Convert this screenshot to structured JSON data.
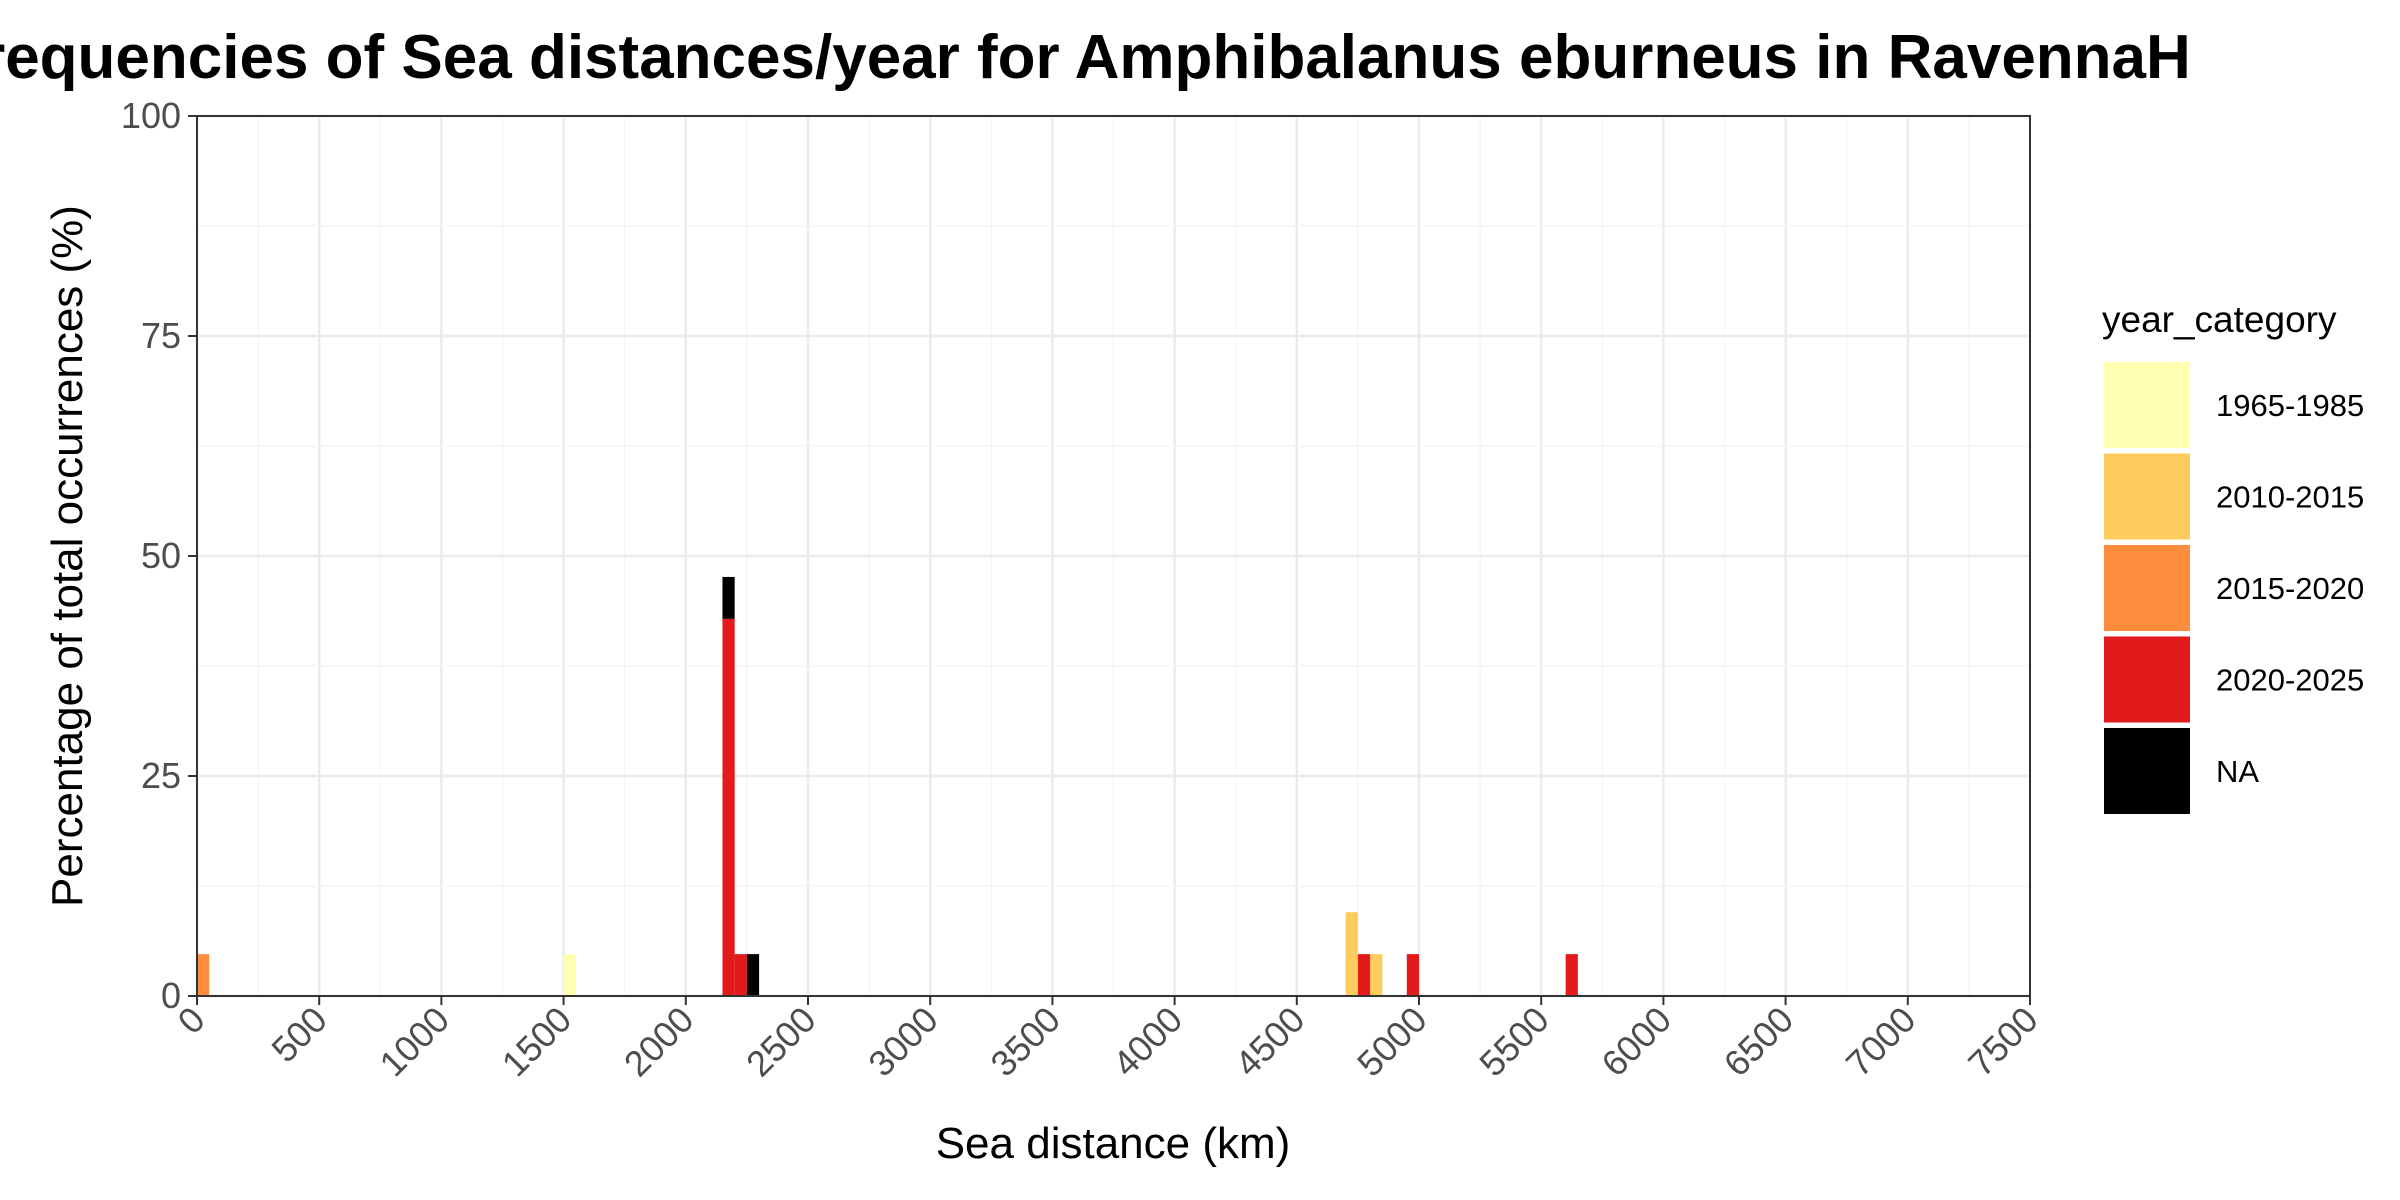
{
  "chart_data": {
    "type": "bar",
    "title": "Frequencies of Sea distances/year for Amphibalanus eburneus in RavennaH",
    "xlabel": "Sea distance (km)",
    "ylabel": "Percentage of total occurrences (%)",
    "xlim": [
      0,
      7500
    ],
    "ylim": [
      0,
      100
    ],
    "x_ticks": [
      0,
      500,
      1000,
      1500,
      2000,
      2500,
      3000,
      3500,
      4000,
      4500,
      5000,
      5500,
      6000,
      6500,
      7000,
      7500
    ],
    "y_ticks": [
      0,
      25,
      50,
      75,
      100
    ],
    "bin_width": 50,
    "stacked": true,
    "grid": true,
    "legend_position": "right",
    "legend_title": "year_category",
    "series": [
      {
        "name": "1965-1985",
        "color": "#FFFFB2",
        "bars": [
          {
            "x": 1500,
            "y": 4.76
          }
        ]
      },
      {
        "name": "2010-2015",
        "color": "#FECC5C",
        "bars": [
          {
            "x": 4700,
            "y": 9.52
          },
          {
            "x": 4800,
            "y": 4.76
          }
        ]
      },
      {
        "name": "2015-2020",
        "color": "#FD8D3C",
        "bars": [
          {
            "x": 0,
            "y": 4.76
          }
        ]
      },
      {
        "name": "2020-2025",
        "color": "#E31A1C",
        "bars": [
          {
            "x": 2150,
            "y": 42.86
          },
          {
            "x": 2200,
            "y": 4.76
          },
          {
            "x": 4750,
            "y": 4.76
          },
          {
            "x": 4950,
            "y": 4.76
          },
          {
            "x": 5600,
            "y": 4.76
          }
        ]
      },
      {
        "name": "NA",
        "color": "#000000",
        "bars": [
          {
            "x": 2150,
            "y": 4.76
          },
          {
            "x": 2250,
            "y": 4.76
          }
        ]
      }
    ]
  }
}
